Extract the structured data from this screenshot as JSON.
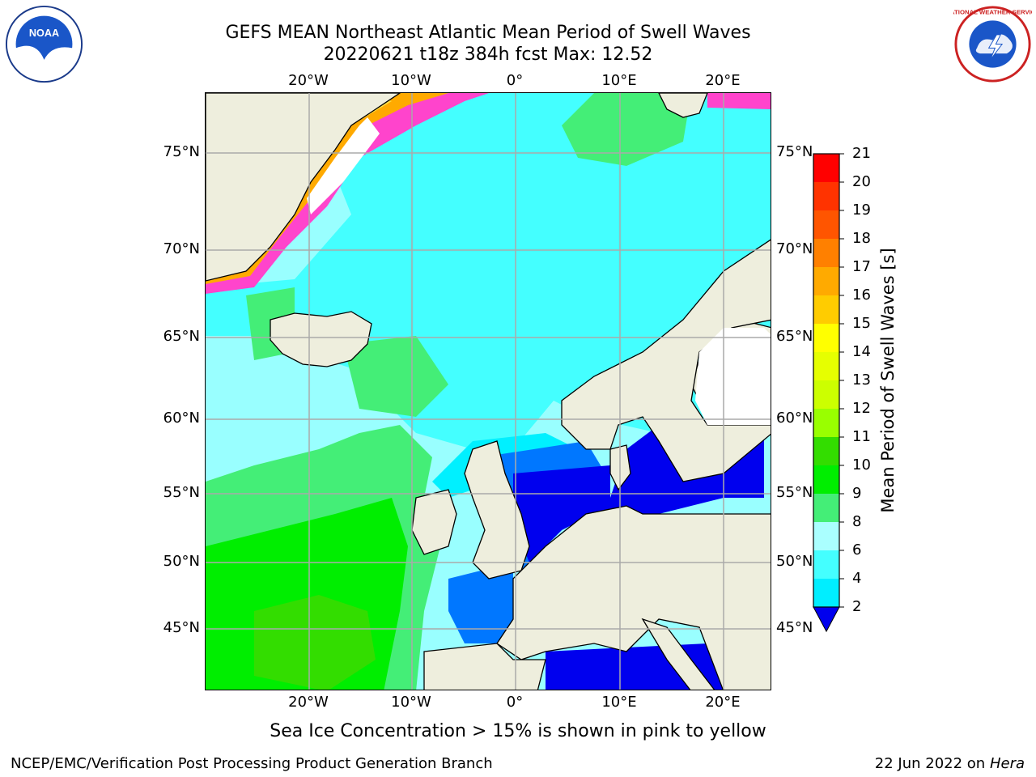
{
  "title": {
    "line1": "GEFS MEAN Northeast Atlantic Mean Period of Swell Waves",
    "line2": "20220621 t18z 384h fcst   Max: 12.52"
  },
  "axes": {
    "lon_ticks": [
      "20°W",
      "10°W",
      "0°",
      "10°E",
      "20°E"
    ],
    "lat_ticks": [
      "75°N",
      "70°N",
      "65°N",
      "60°N",
      "55°N",
      "50°N",
      "45°N"
    ]
  },
  "colorbar": {
    "label": "Mean Period of Swell Waves [s]",
    "ticks": [
      "21",
      "20",
      "19",
      "18",
      "17",
      "16",
      "15",
      "14",
      "13",
      "12",
      "11",
      "10",
      "9",
      "8",
      "6",
      "4",
      "2"
    ],
    "colors": [
      "#ff0000",
      "#ff3300",
      "#ff5500",
      "#ff8000",
      "#ffaa00",
      "#ffcc00",
      "#ffff00",
      "#e6ff00",
      "#ccff00",
      "#99ff00",
      "#33dd00",
      "#00ee00",
      "#44ee77",
      "#aaffff",
      "#44ffff",
      "#00eeff",
      "#0077ff"
    ],
    "extend_color": "#0000ee"
  },
  "colors": {
    "land": "#eeeedd",
    "swell_low": "#0000ee",
    "swell_2_4": "#0077ff",
    "swell_4_6": "#00f0ff",
    "swell_6_8": "#44ffff",
    "swell_8_9": "#99ffff",
    "swell_9_10": "#44ee77",
    "swell_10_11": "#00ee00",
    "swell_11_12": "#33dd00",
    "sea_ice_pink": "#ff44cc",
    "sea_ice_orange": "#ffaa00",
    "sea_ice_yellow": "#ffdd44"
  },
  "subtitle": "Sea Ice Concentration > 15% is shown in pink to yellow",
  "footer": {
    "left": "NCEP/EMC/Verification Post Processing Product Generation Branch",
    "right_date": "22 Jun 2022 on",
    "right_host": "Hera"
  },
  "logos": {
    "noaa_text": "NOAA",
    "nws_text": "NATIONAL WEATHER SERVICE"
  }
}
